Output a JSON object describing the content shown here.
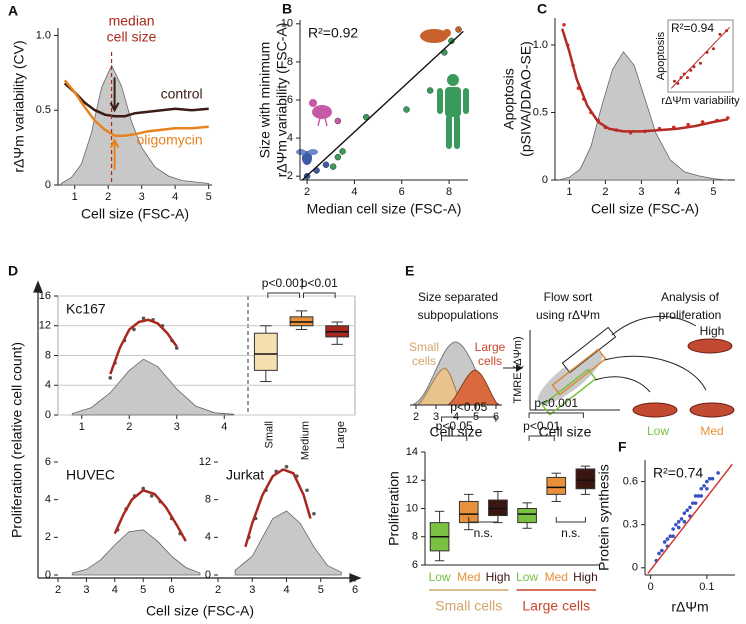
{
  "chart_data": [
    {
      "panel": "A",
      "type": "line",
      "xlabel": "Cell size (FSC-A)",
      "ylabel": [
        "rΔΨm variability (CV)"
      ],
      "xlim": [
        0.5,
        5.1
      ],
      "ylim": [
        0,
        1.05
      ],
      "xticks": [
        1,
        2,
        3,
        4,
        5
      ],
      "yticks": [
        0,
        0.5,
        {
          "value": 1,
          "label": "1.0"
        }
      ],
      "median": 2.1,
      "median_label": [
        "median",
        "cell size"
      ],
      "median_color": "#a8281e",
      "series": [
        {
          "kind": "area",
          "color": "#c8c8c8",
          "x": [
            0.6,
            0.9,
            1.2,
            1.5,
            1.8,
            2.1,
            2.4,
            2.7,
            3.0,
            3.4,
            3.8,
            4.2,
            4.6,
            5.0
          ],
          "values": [
            0.01,
            0.05,
            0.14,
            0.35,
            0.65,
            0.8,
            0.66,
            0.42,
            0.25,
            0.12,
            0.06,
            0.03,
            0.02,
            0.01
          ]
        },
        {
          "name": "control",
          "color": "#3a1c14",
          "x": [
            0.7,
            1,
            1.3,
            1.6,
            1.9,
            2.2,
            2.5,
            2.8,
            3.2,
            3.6,
            4,
            4.5,
            5
          ],
          "values": [
            0.68,
            0.62,
            0.55,
            0.5,
            0.47,
            0.46,
            0.46,
            0.48,
            0.49,
            0.5,
            0.51,
            0.5,
            0.51
          ]
        },
        {
          "name": "oligomycin",
          "color": "#e8821e",
          "x": [
            0.7,
            1,
            1.3,
            1.6,
            1.9,
            2.2,
            2.5,
            2.8,
            3.2,
            3.6,
            4,
            4.5,
            5
          ],
          "values": [
            0.7,
            0.62,
            0.52,
            0.43,
            0.37,
            0.33,
            0.33,
            0.34,
            0.36,
            0.37,
            0.38,
            0.38,
            0.39
          ]
        }
      ]
    },
    {
      "panel": "B",
      "type": "scatter",
      "xlabel": "Median cell size (FSC-A)",
      "ylabel": [
        "Size with minimum",
        "rΔΨm variability (FSC-A)"
      ],
      "xlim": [
        1.7,
        8.8
      ],
      "ylim": [
        1.8,
        10.2
      ],
      "xticks": [
        2,
        4,
        6,
        8
      ],
      "yticks": [
        2,
        4,
        6,
        8,
        10
      ],
      "annotation": "R²=0.92",
      "x": [
        2.0,
        2.4,
        2.8,
        3.1,
        3.3,
        3.5,
        3.3,
        4.5,
        6.2,
        7.2,
        7.8,
        8.1,
        8.4
      ],
      "values": [
        2.0,
        2.3,
        2.6,
        2.5,
        3.0,
        3.3,
        4.9,
        5.1,
        5.5,
        6.5,
        8.5,
        9.1,
        9.7
      ],
      "colors": [
        "#3d5aa8",
        "#3d5aa8",
        "#3d5aa8",
        "#3a9a5b",
        "#3a9a5b",
        "#3a9a5b",
        "#c65aa7",
        "#3a9a5b",
        "#3a9a5b",
        "#3a9a5b",
        "#3a9a5b",
        "#3a9a5b",
        "#c8612b"
      ],
      "fit": {
        "color": "#111111",
        "x": [
          1.8,
          8.6
        ],
        "values": [
          1.8,
          9.6
        ]
      }
    },
    {
      "panel": "C",
      "type": "line",
      "xlabel": "Cell size (FSC-A)",
      "ylabel": [
        "Apoptosis",
        "(pSIVA/DDAO-SE)"
      ],
      "xlim": [
        0.6,
        5.6
      ],
      "ylim": [
        0,
        1.2
      ],
      "xticks": [
        1,
        2,
        3,
        4,
        5
      ],
      "yticks": [
        0,
        0.5,
        {
          "value": 1,
          "label": "1.0"
        }
      ],
      "series": [
        {
          "kind": "area",
          "color": "#c8c8c8",
          "x": [
            0.7,
            1,
            1.3,
            1.6,
            1.9,
            2.2,
            2.5,
            2.8,
            3.1,
            3.4,
            3.8,
            4.2,
            4.6,
            5,
            5.4
          ],
          "values": [
            0,
            0.02,
            0.08,
            0.25,
            0.55,
            0.82,
            0.95,
            0.85,
            0.6,
            0.35,
            0.15,
            0.06,
            0.03,
            0.01,
            0
          ]
        },
        {
          "kind": "points",
          "color": "#d0302a",
          "x": [
            0.85,
            0.95,
            1.1,
            1.25,
            1.4,
            1.6,
            1.8,
            2,
            2.3,
            2.7,
            3.1,
            3.5,
            3.9,
            4.3,
            4.7,
            5.1,
            5.4
          ],
          "values": [
            1.15,
            1.0,
            0.85,
            0.68,
            0.6,
            0.5,
            0.44,
            0.39,
            0.37,
            0.35,
            0.36,
            0.38,
            0.39,
            0.41,
            0.43,
            0.44,
            0.46
          ]
        },
        {
          "color": "#b52a22",
          "x": [
            0.8,
            1,
            1.2,
            1.5,
            1.8,
            2.1,
            2.5,
            3,
            3.5,
            4,
            4.5,
            5,
            5.4
          ],
          "values": [
            1.12,
            0.95,
            0.75,
            0.55,
            0.43,
            0.38,
            0.36,
            0.36,
            0.37,
            0.38,
            0.4,
            0.43,
            0.45
          ]
        }
      ],
      "inset": {
        "annotation": "R²=0.94",
        "xlabel": "rΔΨm variability",
        "ylabel": "Apoptosis",
        "color": "#b52a22",
        "x": [
          0.1,
          0.15,
          0.2,
          0.25,
          0.3,
          0.35,
          0.4,
          0.5,
          0.6,
          0.7,
          0.8,
          0.9
        ],
        "values": [
          0.15,
          0.12,
          0.2,
          0.25,
          0.2,
          0.3,
          0.35,
          0.4,
          0.55,
          0.6,
          0.8,
          0.85
        ],
        "fit": {
          "x": [
            0.05,
            0.95
          ],
          "values": [
            0.05,
            0.9
          ]
        }
      }
    },
    {
      "panel": "D",
      "type": "line",
      "title": "Kc167",
      "ylabel": [
        "Proliferation (relative cell count)"
      ],
      "xlabel": "Cell size (FSC-A)",
      "grid": true,
      "xlim": [
        0.5,
        4.5
      ],
      "ylim": [
        0,
        16
      ],
      "xticks": [
        1,
        2,
        3,
        4
      ],
      "yticks": [
        0,
        4,
        8,
        12,
        16
      ],
      "series": [
        {
          "kind": "area",
          "color": "#c8c8c8",
          "x": [
            0.8,
            1.2,
            1.6,
            2,
            2.3,
            2.6,
            3,
            3.4,
            3.8,
            4.2
          ],
          "values": [
            0.2,
            1,
            3,
            6,
            7.5,
            6.5,
            3.5,
            1.2,
            0.3,
            0.1
          ]
        },
        {
          "kind": "points",
          "color": "#555555",
          "x": [
            1.6,
            1.7,
            1.9,
            2.1,
            2.3,
            2.5,
            2.7,
            2.9,
            3.0
          ],
          "values": [
            5,
            7,
            10,
            11.5,
            13,
            12.8,
            12,
            10,
            9
          ]
        },
        {
          "color": "#a8281e",
          "x": [
            1.6,
            1.8,
            2,
            2.2,
            2.4,
            2.6,
            2.8,
            3
          ],
          "values": [
            5.5,
            9,
            11.5,
            12.5,
            12.8,
            12.3,
            11,
            9.2
          ]
        }
      ]
    },
    {
      "type": "box",
      "ylim": [
        0,
        16
      ],
      "yticks": [
        0,
        4,
        8,
        12,
        16
      ],
      "grid": true,
      "categories": [
        "Small",
        "Medium",
        "Large"
      ],
      "colors": [
        "#f5deb0",
        "#e8903a",
        "#a8281e"
      ],
      "boxes": [
        {
          "whislo": 4.5,
          "q1": 6,
          "med": 8.2,
          "q3": 11,
          "whishi": 12
        },
        {
          "whislo": 11.5,
          "q1": 12,
          "med": 12.5,
          "q3": 13.2,
          "whishi": 14
        },
        {
          "whislo": 9.5,
          "q1": 10.5,
          "med": 11.2,
          "q3": 12,
          "whishi": 12.5
        }
      ],
      "pvalues": [
        "p<0.001",
        "p<0.01"
      ]
    },
    {
      "type": "line",
      "title": "HUVEC",
      "xlim": [
        2,
        7
      ],
      "ylim": [
        0,
        6
      ],
      "xticks": [
        2,
        3,
        4,
        5,
        6
      ],
      "yticks": [
        0,
        2,
        4,
        6
      ],
      "series": [
        {
          "kind": "area",
          "color": "#c8c8c8",
          "x": [
            2.5,
            3,
            3.5,
            4,
            4.5,
            5,
            5.5,
            6,
            6.5,
            7
          ],
          "values": [
            0.1,
            0.3,
            0.8,
            1.6,
            2.3,
            2.4,
            1.8,
            1,
            0.4,
            0.1
          ]
        },
        {
          "kind": "points",
          "color": "#555555",
          "x": [
            4.1,
            4.4,
            4.7,
            5,
            5.3,
            5.6,
            6,
            6.3
          ],
          "values": [
            2.4,
            3.5,
            4.2,
            4.6,
            4.2,
            3.9,
            3,
            2.2
          ]
        },
        {
          "color": "#a8281e",
          "x": [
            4,
            4.3,
            4.6,
            5,
            5.4,
            5.8,
            6.2,
            6.5
          ],
          "values": [
            2.2,
            3.2,
            4,
            4.5,
            4.3,
            3.6,
            2.6,
            1.8
          ]
        }
      ]
    },
    {
      "type": "line",
      "title": "Jurkat",
      "xlim": [
        2,
        6
      ],
      "ylim": [
        0,
        12
      ],
      "xticks": [
        2,
        3,
        4,
        5,
        6
      ],
      "yticks": [
        0,
        4,
        8,
        12
      ],
      "series": [
        {
          "kind": "area",
          "color": "#c8c8c8",
          "x": [
            2.5,
            3,
            3.3,
            3.6,
            4,
            4.4,
            4.8,
            5.2,
            5.6
          ],
          "values": [
            0.5,
            2,
            4,
            6,
            6.8,
            5.5,
            3,
            1,
            0.3
          ]
        },
        {
          "kind": "points",
          "color": "#555555",
          "x": [
            2.9,
            3.1,
            3.4,
            3.7,
            4,
            4.3,
            4.6,
            4.8
          ],
          "values": [
            4,
            6,
            9,
            11,
            11.5,
            10.5,
            9,
            6.5
          ]
        },
        {
          "color": "#a8281e",
          "x": [
            2.8,
            3,
            3.3,
            3.6,
            3.9,
            4.2,
            4.5,
            4.7
          ],
          "values": [
            3,
            5.5,
            8.5,
            10.5,
            11.2,
            10.8,
            8.5,
            6
          ]
        }
      ]
    },
    {
      "panel": "E",
      "type": "diagram",
      "step1": [
        "Size separated",
        "subpopulations"
      ],
      "step2": [
        "Flow sort",
        "using rΔΨm"
      ],
      "step3": [
        "Analysis of",
        "proliferation"
      ],
      "small": [
        "Small",
        "cells"
      ],
      "large": [
        "Large",
        "cells"
      ],
      "hist_xlabel": "Cell size",
      "hist_xlim": [
        1.7,
        6.3
      ],
      "hist_xticks": [
        2,
        3,
        4,
        5,
        6
      ],
      "sort_ylabel": "TMRE (ΔΨm)",
      "sort_xlabel": "Cell size",
      "high": "High",
      "low": "Low",
      "med": "Med"
    },
    {
      "type": "box",
      "ylabel": [
        "Proliferation"
      ],
      "ylim": [
        6,
        14
      ],
      "yticks": [
        6,
        8,
        10,
        12,
        14
      ],
      "categories": [
        "Low",
        "Med",
        "High",
        "Low",
        "Med",
        "High"
      ],
      "groups": [
        "Small cells",
        "Large cells"
      ],
      "group_colors": [
        "#d4a46a",
        "#c9452b"
      ],
      "colors": [
        "#7ac142",
        "#e8903a",
        "#3b1510",
        "#7ac142",
        "#e8903a",
        "#3b1510"
      ],
      "boxes": [
        {
          "whislo": 6.3,
          "q1": 7,
          "med": 8,
          "q3": 9,
          "whishi": 9.8
        },
        {
          "whislo": 8.5,
          "q1": 9,
          "med": 9.6,
          "q3": 10.5,
          "whishi": 11
        },
        {
          "whislo": 9,
          "q1": 9.5,
          "med": 10,
          "q3": 10.6,
          "whishi": 11.2
        },
        {
          "whislo": 8.6,
          "q1": 9,
          "med": 9.6,
          "q3": 10,
          "whishi": 10.4
        },
        {
          "whislo": 10.5,
          "q1": 11,
          "med": 11.5,
          "q3": 12.2,
          "whishi": 12.5
        },
        {
          "whislo": 11,
          "q1": 11.4,
          "med": 12,
          "q3": 12.8,
          "whishi": 13
        }
      ],
      "pvalues": [
        "p<0.05",
        "p<0.05",
        "n.s.",
        "p<0.001",
        "p<0.01",
        "n.s."
      ]
    },
    {
      "panel": "F",
      "type": "scatter",
      "xlabel": "rΔΨm",
      "ylabel": [
        "Protein synthesis"
      ],
      "annotation": "R²=0.74",
      "xlim": [
        -0.01,
        0.15
      ],
      "ylim": [
        -0.05,
        0.75
      ],
      "xticks": [
        0,
        0.1
      ],
      "yticks": [
        0,
        0.3,
        0.6
      ],
      "x": [
        0.01,
        0.015,
        0.02,
        0.025,
        0.03,
        0.035,
        0.04,
        0.045,
        0.05,
        0.055,
        0.06,
        0.065,
        0.07,
        0.075,
        0.08,
        0.085,
        0.09,
        0.095,
        0.1,
        0.105,
        0.11,
        0.12,
        0.03,
        0.05,
        0.07,
        0.09,
        0.04,
        0.06,
        0.08,
        0.1
      ],
      "values": [
        0.05,
        0.1,
        0.12,
        0.18,
        0.2,
        0.22,
        0.27,
        0.3,
        0.32,
        0.34,
        0.38,
        0.4,
        0.42,
        0.45,
        0.5,
        0.5,
        0.55,
        0.57,
        0.6,
        0.62,
        0.62,
        0.66,
        0.15,
        0.28,
        0.36,
        0.5,
        0.22,
        0.32,
        0.45,
        0.55
      ],
      "color": "#3b4fc4",
      "fit": {
        "color": "#d0302a",
        "x": [
          -0.005,
          0.145
        ],
        "values": [
          -0.04,
          0.72
        ]
      }
    }
  ]
}
